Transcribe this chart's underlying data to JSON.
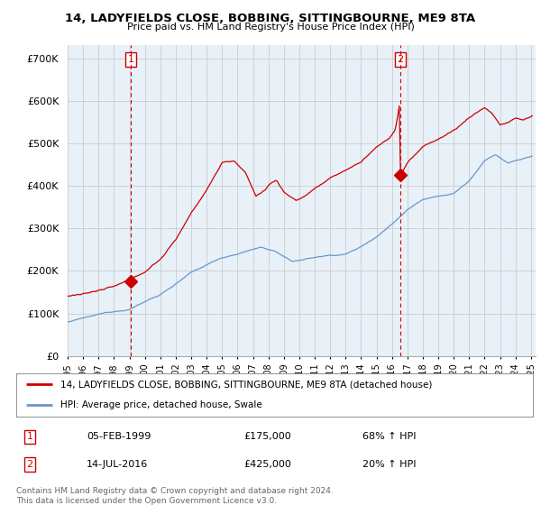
{
  "title1": "14, LADYFIELDS CLOSE, BOBBING, SITTINGBOURNE, ME9 8TA",
  "title2": "Price paid vs. HM Land Registry's House Price Index (HPI)",
  "ylabel_ticks": [
    "£0",
    "£100K",
    "£200K",
    "£300K",
    "£400K",
    "£500K",
    "£600K",
    "£700K"
  ],
  "ytick_values": [
    0,
    100000,
    200000,
    300000,
    400000,
    500000,
    600000,
    700000
  ],
  "ylim": [
    0,
    730000
  ],
  "xlim_start": 1995.0,
  "xlim_end": 2025.3,
  "red_line_color": "#cc0000",
  "blue_line_color": "#6699cc",
  "fill_color": "#ddeeff",
  "dashed_line_color": "#cc0000",
  "grid_color": "#cccccc",
  "bg_color": "#ffffff",
  "chart_bg_color": "#e8f0f8",
  "transaction1_date": 1999.09,
  "transaction1_price": 175000,
  "transaction2_date": 2016.54,
  "transaction2_price": 425000,
  "legend_label1": "14, LADYFIELDS CLOSE, BOBBING, SITTINGBOURNE, ME9 8TA (detached house)",
  "legend_label2": "HPI: Average price, detached house, Swale",
  "annotation1_label": "1",
  "annotation1_date": "05-FEB-1999",
  "annotation1_price": "£175,000",
  "annotation1_hpi": "68% ↑ HPI",
  "annotation2_label": "2",
  "annotation2_date": "14-JUL-2016",
  "annotation2_price": "£425,000",
  "annotation2_hpi": "20% ↑ HPI",
  "footer": "Contains HM Land Registry data © Crown copyright and database right 2024.\nThis data is licensed under the Open Government Licence v3.0."
}
